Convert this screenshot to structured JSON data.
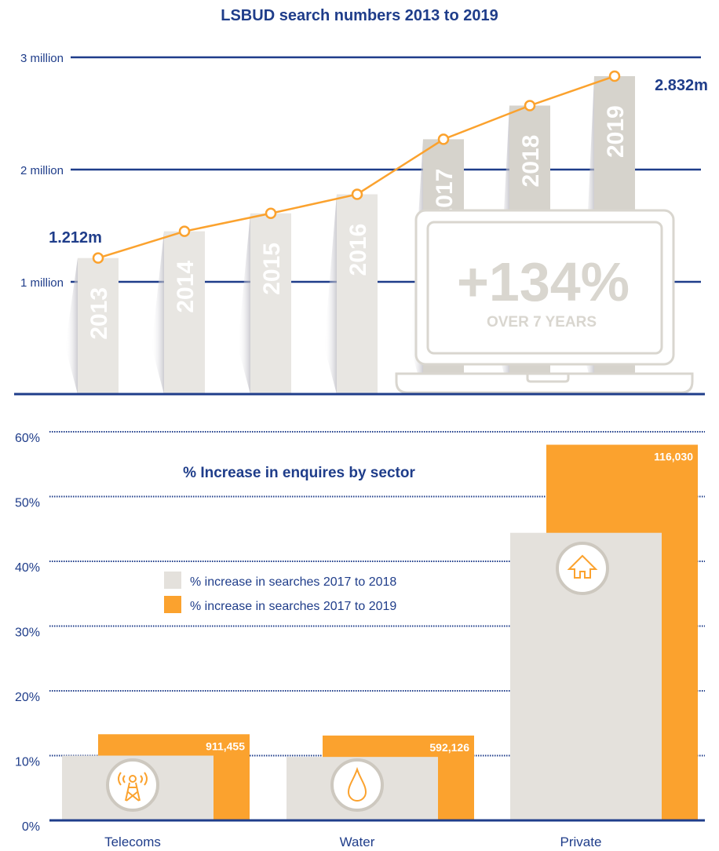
{
  "colors": {
    "navy": "#1f3d8a",
    "orange": "#fba22e",
    "gray": "#e4e1dc",
    "grayDark": "#d6d3cc",
    "laptop": "#d9d6cf"
  },
  "chart_data": [
    {
      "type": "bar",
      "title": "LSBUD search numbers 2013 to 2019",
      "categories": [
        "2013",
        "2014",
        "2015",
        "2016",
        "2017",
        "2018",
        "2019"
      ],
      "values": [
        1.212,
        1.45,
        1.61,
        1.78,
        2.27,
        2.57,
        2.832
      ],
      "ylabel": "",
      "xlabel": "",
      "ylim": [
        0,
        3
      ],
      "yticks": [
        {
          "v": 1,
          "label": "1 million"
        },
        {
          "v": 2,
          "label": "2 million"
        },
        {
          "v": 3,
          "label": "3 million"
        }
      ],
      "annotations": {
        "first": "1.212m",
        "last": "2.832m",
        "big": "+134%",
        "sub": "OVER 7 YEARS"
      },
      "grid": true
    },
    {
      "type": "bar",
      "title": "% Increase in enquires by sector",
      "categories": [
        "Telecoms",
        "Water",
        "Private"
      ],
      "icons": [
        "telecom-tower-icon",
        "water-drop-icon",
        "house-icon"
      ],
      "series": [
        {
          "name": "% increase in searches 2017 to 2018",
          "values": [
            10.0,
            9.8,
            44.4
          ]
        },
        {
          "name": "% increase in searches 2017 to 2019",
          "values": [
            13.3,
            13.1,
            58.0
          ],
          "labels": [
            "911,455",
            "592,126",
            "116,030"
          ]
        }
      ],
      "ylim": [
        0,
        60
      ],
      "yticks": [
        "0%",
        "10%",
        "20%",
        "30%",
        "40%",
        "50%",
        "60%"
      ],
      "legend": "center-left",
      "grid": true
    }
  ]
}
